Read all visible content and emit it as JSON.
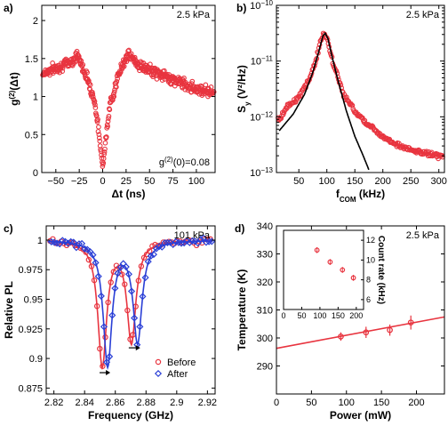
{
  "chart_data": [
    {
      "id": "a",
      "panel_label": "a)",
      "type": "scatter",
      "xlabel": "Δt (ns)",
      "ylabel": "g(2)(Δt)",
      "ylabel_main": "g",
      "ylabel_sup": "(2)",
      "ylabel_rest": "(Δt)",
      "xlim": [
        -65,
        120
      ],
      "ylim": [
        0,
        2.2
      ],
      "xticks": [
        -50,
        -25,
        0,
        25,
        50,
        75,
        100
      ],
      "xtick_labels": [
        "−50",
        "−25",
        "0",
        "25",
        "50",
        "75",
        "100"
      ],
      "yticks": [
        0,
        0.5,
        1,
        1.5,
        2
      ],
      "ytick_labels": [
        "0",
        "0.5",
        "1",
        "1.5",
        "2"
      ],
      "annotation_top": "2.5 kPa",
      "annotation_bottom_main": "g",
      "annotation_bottom_sup": "(2)",
      "annotation_bottom_rest": "(0)=0.08",
      "series": [
        {
          "color": "#e8343f",
          "marker": "circle",
          "description_points": [
            [
              -65,
              1.3
            ],
            [
              -55,
              1.35
            ],
            [
              -45,
              1.4
            ],
            [
              -35,
              1.45
            ],
            [
              -30,
              1.5
            ],
            [
              -27,
              1.55
            ],
            [
              -22,
              1.4
            ],
            [
              -15,
              1.2
            ],
            [
              -8,
              0.9
            ],
            [
              -3,
              0.4
            ],
            [
              0,
              0.08
            ],
            [
              3,
              0.4
            ],
            [
              8,
              0.9
            ],
            [
              15,
              1.2
            ],
            [
              22,
              1.45
            ],
            [
              27,
              1.55
            ],
            [
              32,
              1.5
            ],
            [
              40,
              1.4
            ],
            [
              50,
              1.35
            ],
            [
              60,
              1.3
            ],
            [
              70,
              1.25
            ],
            [
              80,
              1.2
            ],
            [
              90,
              1.15
            ],
            [
              100,
              1.1
            ],
            [
              110,
              1.08
            ],
            [
              120,
              1.05
            ]
          ]
        }
      ]
    },
    {
      "id": "b",
      "panel_label": "b)",
      "type": "scatter",
      "xlabel_main": "f",
      "xlabel_sub": "COM",
      "xlabel_rest": " (kHz)",
      "ylabel_main": "S",
      "ylabel_sub": "y",
      "ylabel_rest": " (V²/Hz)",
      "xlim": [
        10,
        310
      ],
      "ylim_log10": [
        -13,
        -10
      ],
      "yscale": "log",
      "xticks": [
        50,
        100,
        150,
        200,
        250,
        300
      ],
      "xtick_labels": [
        "50",
        "100",
        "150",
        "200",
        "250",
        "300"
      ],
      "ytick_exponents": [
        -13,
        -12,
        -11,
        -10
      ],
      "annotation_top": "2.5 kPa",
      "series": [
        {
          "color": "#e8343f",
          "marker": "circle",
          "log10_points": [
            [
              15,
              -12.05
            ],
            [
              30,
              -11.8
            ],
            [
              50,
              -11.65
            ],
            [
              70,
              -11.3
            ],
            [
              80,
              -11.0
            ],
            [
              90,
              -10.6
            ],
            [
              95,
              -10.5
            ],
            [
              100,
              -10.6
            ],
            [
              110,
              -11.0
            ],
            [
              130,
              -11.6
            ],
            [
              150,
              -11.9
            ],
            [
              175,
              -12.15
            ],
            [
              200,
              -12.35
            ],
            [
              225,
              -12.5
            ],
            [
              250,
              -12.6
            ],
            [
              275,
              -12.65
            ],
            [
              300,
              -12.7
            ]
          ]
        },
        {
          "color": "#000000",
          "marker": "line",
          "log10_points": [
            [
              15,
              -12.25
            ],
            [
              40,
              -11.95
            ],
            [
              60,
              -11.6
            ],
            [
              75,
              -11.2
            ],
            [
              85,
              -10.85
            ],
            [
              93,
              -10.55
            ],
            [
              97,
              -10.5
            ],
            [
              102,
              -10.6
            ],
            [
              110,
              -10.95
            ],
            [
              120,
              -11.35
            ],
            [
              135,
              -11.9
            ],
            [
              150,
              -12.35
            ],
            [
              165,
              -12.7
            ],
            [
              175,
              -12.95
            ]
          ]
        }
      ]
    },
    {
      "id": "c",
      "panel_label": "c)",
      "type": "line",
      "xlabel": "Frequency (GHz)",
      "ylabel": "Relative PL",
      "xlim": [
        2.815,
        2.925
      ],
      "ylim": [
        0.87,
        1.012
      ],
      "xticks": [
        2.82,
        2.84,
        2.86,
        2.88,
        2.9,
        2.92
      ],
      "xtick_labels": [
        "2.82",
        "2.84",
        "2.86",
        "2.88",
        "2.9",
        "2.92"
      ],
      "yticks": [
        0.875,
        0.9,
        0.925,
        0.95,
        0.975,
        1
      ],
      "ytick_labels": [
        "0.875",
        "0.9",
        "0.925",
        "0.95",
        "0.975",
        "1"
      ],
      "annotation_top": "101 kPa",
      "series": [
        {
          "name": "Before",
          "color": "#e8343f",
          "marker": "circle",
          "dips": [
            [
              2.8515,
              0.105
            ],
            [
              2.8705,
              0.085
            ]
          ],
          "width": 0.0035
        },
        {
          "name": "After",
          "color": "#2a3fd6",
          "marker": "diamond",
          "dips": [
            [
              2.855,
              0.105
            ],
            [
              2.8745,
              0.085
            ]
          ],
          "width": 0.0035
        }
      ],
      "shift_arrows_y": [
        0.888,
        0.909
      ]
    },
    {
      "id": "d",
      "panel_label": "d)",
      "type": "scatter",
      "xlabel": "Power (mW)",
      "ylabel": "Temperature (K)",
      "xlim": [
        0,
        240
      ],
      "ylim": [
        280,
        340
      ],
      "xticks": [
        0,
        50,
        100,
        150,
        200
      ],
      "xtick_labels": [
        "0",
        "50",
        "100",
        "150",
        "200"
      ],
      "yticks": [
        290,
        300,
        310,
        320,
        330,
        340
      ],
      "ytick_labels": [
        "290",
        "300",
        "310",
        "320",
        "330",
        "340"
      ],
      "annotation_top": "2.5 kPa",
      "series": [
        {
          "color": "#e8343f",
          "marker": "circle",
          "x": [
            92,
            128,
            162,
            192
          ],
          "y": [
            300.5,
            302,
            302.8,
            305.5
          ],
          "yerr": [
            1.5,
            2,
            2,
            2.5
          ]
        }
      ],
      "fit_line": [
        [
          0,
          296.3
        ],
        [
          240,
          307.5
        ]
      ],
      "inset": {
        "ylabel": "Count rate (kHz)",
        "xlim": [
          0,
          220
        ],
        "ylim": [
          5,
          13
        ],
        "xticks": [
          0,
          50,
          100,
          150,
          200
        ],
        "xtick_labels": [
          "0",
          "50",
          "100",
          "150",
          "200"
        ],
        "yticks": [
          6,
          8,
          10,
          12
        ],
        "ytick_labels": [
          "6",
          "8",
          "10",
          "12"
        ],
        "x": [
          92,
          128,
          162,
          192
        ],
        "y": [
          11.0,
          9.8,
          9.0,
          8.2
        ],
        "yerr": [
          0.3,
          0.3,
          0.3,
          0.3
        ]
      }
    }
  ]
}
